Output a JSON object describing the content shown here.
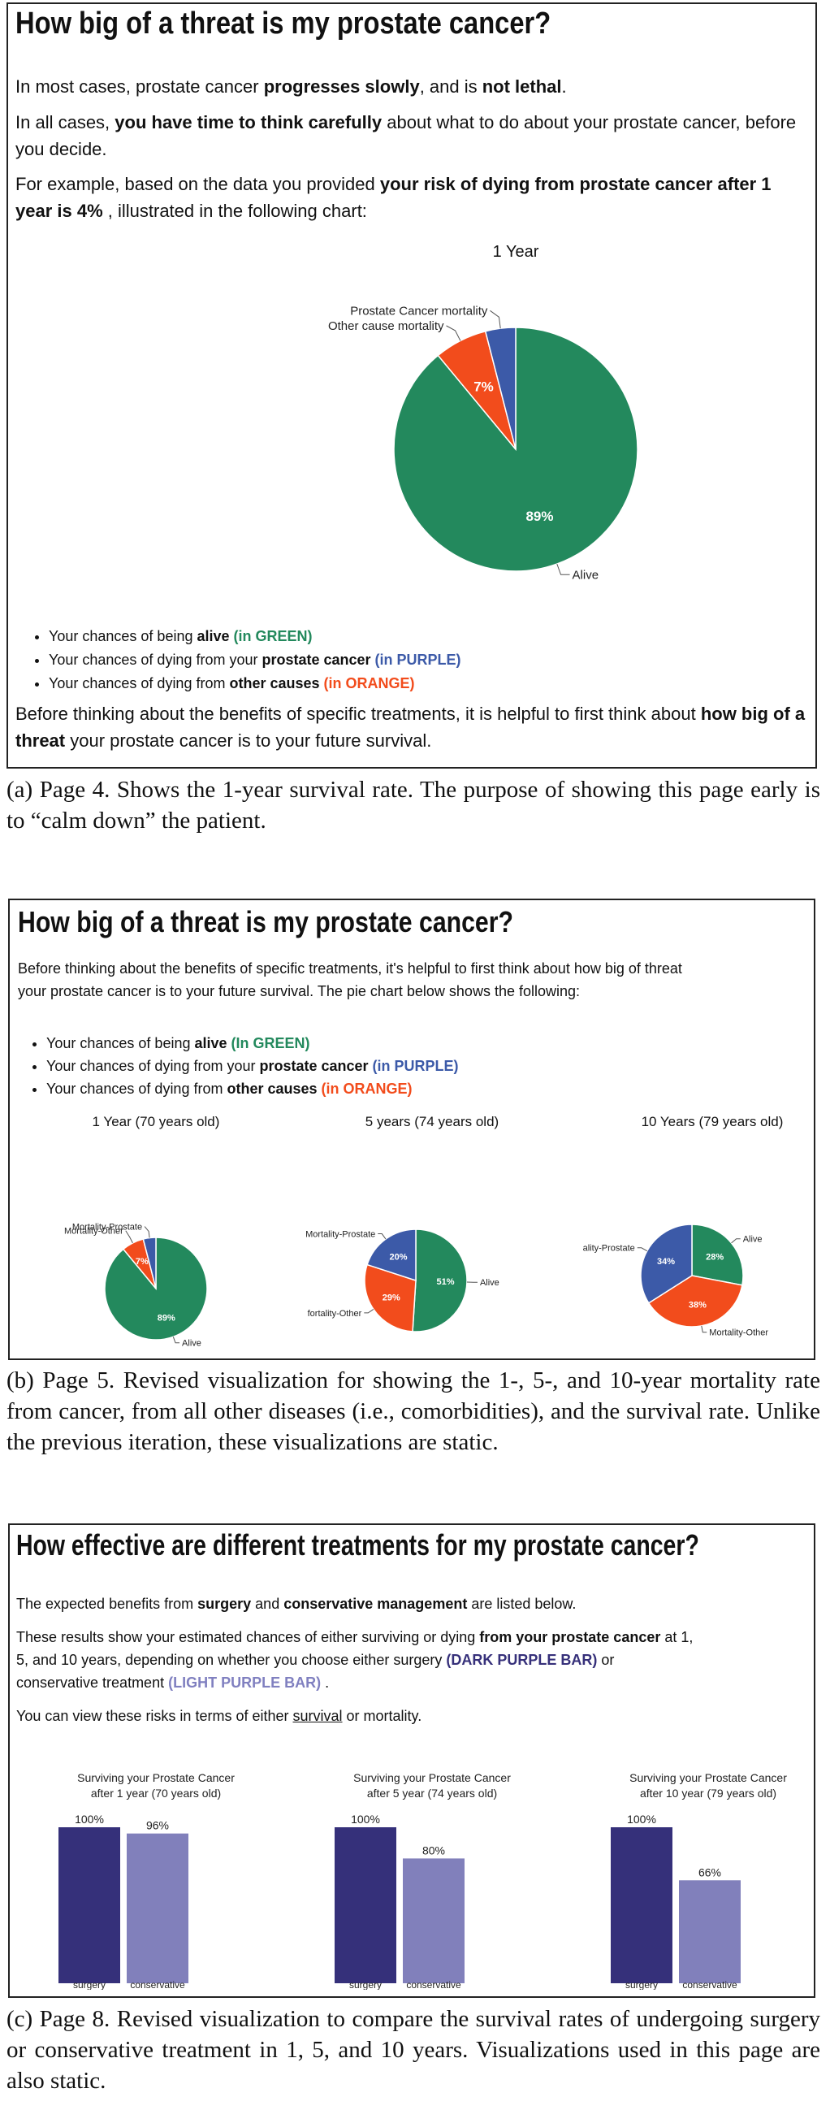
{
  "colors": {
    "green": "#23895d",
    "purple": "#3c5aa8",
    "orange": "#f24c1c",
    "dark_purple_bar": "#35307a",
    "light_purple_bar": "#8180bb"
  },
  "page4": {
    "title": "How big of a threat is my prostate cancer?",
    "p1_a": "In most cases, prostate cancer ",
    "p1_b": "progresses slowly",
    "p1_c": ", and is ",
    "p1_d": "not lethal",
    "p1_e": ".",
    "p2_a": "In all cases, ",
    "p2_b": "you have time to think carefully",
    "p2_c": " about what to do about your prostate cancer, before you decide.",
    "p3_a": "For example, based on the data you provided ",
    "p3_b": "your risk of dying from prostate cancer after 1 year is 4%",
    "p3_c": " , illustrated in the following chart:",
    "bullets": [
      {
        "a": "Your chances of being ",
        "b": "alive",
        "c": " (in GREEN)"
      },
      {
        "a": "Your chances of dying from your ",
        "b": "prostate cancer",
        "c": " (in PURPLE)"
      },
      {
        "a": "Your chances of dying from ",
        "b": "other causes",
        "c": " (in ORANGE)"
      }
    ],
    "p4_a": "Before thinking about the benefits of specific treatments, it is helpful to first think about ",
    "p4_b": "how big of a threat",
    "p4_c": " your prostate cancer is to your future survival."
  },
  "chart_data": [
    {
      "type": "pie",
      "title": "1 Year",
      "slices": [
        {
          "name": "Alive",
          "value": 89,
          "label": "89%",
          "color": "#23895d"
        },
        {
          "name": "Other cause mortality",
          "value": 7,
          "label": "7%",
          "color": "#f24c1c"
        },
        {
          "name": "Prostate Cancer mortality",
          "value": 4,
          "label": "",
          "color": "#3c5aa8"
        }
      ]
    },
    {
      "type": "pie",
      "title": "1 Year (70 years old)",
      "slices": [
        {
          "name": "Alive",
          "value": 89,
          "label": "89%",
          "color": "#23895d"
        },
        {
          "name": "Mortality-Other",
          "value": 7,
          "label": "7%",
          "color": "#f24c1c"
        },
        {
          "name": "Mortality-Prostate",
          "value": 4,
          "label": "",
          "color": "#3c5aa8"
        }
      ]
    },
    {
      "type": "pie",
      "title": "5 years (74 years old)",
      "slices": [
        {
          "name": "Alive",
          "value": 51,
          "label": "51%",
          "color": "#23895d"
        },
        {
          "name": "fortality-Other",
          "value": 29,
          "label": "29%",
          "color": "#f24c1c"
        },
        {
          "name": "Mortality-Prostate",
          "value": 20,
          "label": "20%",
          "color": "#3c5aa8"
        }
      ]
    },
    {
      "type": "pie",
      "title": "10 Years (79 years old)",
      "slices": [
        {
          "name": "Alive",
          "value": 28,
          "label": "28%",
          "color": "#23895d"
        },
        {
          "name": "Mortality-Other",
          "value": 38,
          "label": "38%",
          "color": "#f24c1c"
        },
        {
          "name": "ality-Prostate",
          "value": 34,
          "label": "34%",
          "color": "#3c5aa8"
        }
      ]
    },
    {
      "type": "bar",
      "title": [
        "Surviving your Prostate Cancer",
        "after 1 year (70 years old)"
      ],
      "categories": [
        "surgery",
        "conservative"
      ],
      "values": [
        100,
        96
      ],
      "labels": [
        "100%",
        "96%"
      ],
      "colors": [
        "#35307a",
        "#8180bb"
      ],
      "ylim": [
        0,
        100
      ]
    },
    {
      "type": "bar",
      "title": [
        "Surviving your Prostate Cancer",
        "after 5 year (74 years old)"
      ],
      "categories": [
        "surgery",
        "conservative"
      ],
      "values": [
        100,
        80
      ],
      "labels": [
        "100%",
        "80%"
      ],
      "colors": [
        "#35307a",
        "#8180bb"
      ],
      "ylim": [
        0,
        100
      ]
    },
    {
      "type": "bar",
      "title": [
        "Surviving your Prostate Cancer",
        "after 10 year (79 years old)"
      ],
      "categories": [
        "surgery",
        "conservative"
      ],
      "values": [
        100,
        66
      ],
      "labels": [
        "100%",
        "66%"
      ],
      "colors": [
        "#35307a",
        "#8180bb"
      ],
      "ylim": [
        0,
        100
      ]
    }
  ],
  "caption_a": "(a)  Page 4.  Shows the 1-year survival rate.  The purpose of showing this page early is to “calm down” the patient.",
  "page5": {
    "title": "How big of a threat is my prostate cancer?",
    "intro": "Before thinking about the benefits of specific treatments, it's helpful to first think about how big of threat your prostate cancer is to your future survival. The pie chart below shows the following:",
    "bullets": [
      {
        "a": "Your chances of being ",
        "b": "alive",
        "c": " (In GREEN)"
      },
      {
        "a": "Your chances of dying from your ",
        "b": "prostate cancer",
        "c": " (in PURPLE)"
      },
      {
        "a": "Your chances of dying from ",
        "b": "other causes",
        "c": " (in ORANGE)"
      }
    ]
  },
  "caption_b": "(b)  Page 5.  Revised visualization for showing the 1-, 5-, and 10-year mortality rate from cancer, from all other diseases (i.e., comorbidities), and the survival rate. Unlike the previous iteration, these visualizations are static.",
  "page8": {
    "title": "How effective are different treatments for my prostate cancer?",
    "p1_a": "The expected benefits from ",
    "p1_b": "surgery",
    "p1_c": " and ",
    "p1_d": "conservative management",
    "p1_e": " are listed below.",
    "p2_a": "These results show your estimated chances of either surviving or dying ",
    "p2_b": "from your prostate cancer",
    "p2_c": " at 1, 5, and 10 years, depending on whether you choose either surgery ",
    "p2_d": "(DARK PURPLE BAR)",
    "p2_e": " or conservative treatment ",
    "p2_f": "(LIGHT PURPLE BAR)",
    "p2_g": " .",
    "p3_a": "You can view these risks in terms of either ",
    "p3_b": "survival",
    "p3_c": " or mortality."
  },
  "caption_c": "(c)  Page 8. Revised visualization to compare the survival rates of undergoing surgery or conservative treatment in 1, 5, and 10 years. Visualizations used in this page are also static."
}
